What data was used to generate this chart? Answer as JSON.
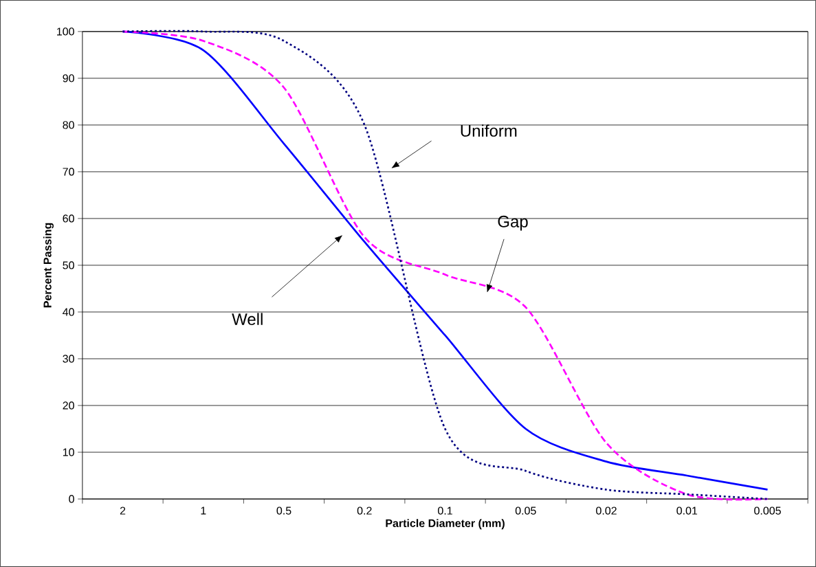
{
  "chart_data": {
    "type": "line",
    "xlabel": "Particle Diameter (mm)",
    "ylabel": "Percent Passing",
    "categories": [
      "2",
      "1",
      "0.5",
      "0.2",
      "0.1",
      "0.05",
      "0.02",
      "0.01",
      "0.005"
    ],
    "series": [
      {
        "color": "#0000ff",
        "line_style": "solid",
        "values": [
          100,
          96,
          76,
          55,
          35,
          15,
          8,
          5,
          2
        ]
      },
      {
        "color": "#ff00ff",
        "line_style": "dashed",
        "values": [
          100,
          98,
          88,
          56,
          48,
          41,
          12,
          1,
          0
        ]
      },
      {
        "color": "#000080",
        "line_style": "dotted",
        "values": [
          100,
          100,
          98,
          80,
          15,
          6,
          2,
          1,
          0
        ]
      }
    ],
    "ylim": [
      0,
      100
    ],
    "yticks": [
      0,
      10,
      20,
      30,
      40,
      50,
      60,
      70,
      80,
      90,
      100
    ],
    "grid": "y",
    "marker": "none",
    "annotations": [
      "Uniform",
      "Well",
      "Gap"
    ]
  }
}
